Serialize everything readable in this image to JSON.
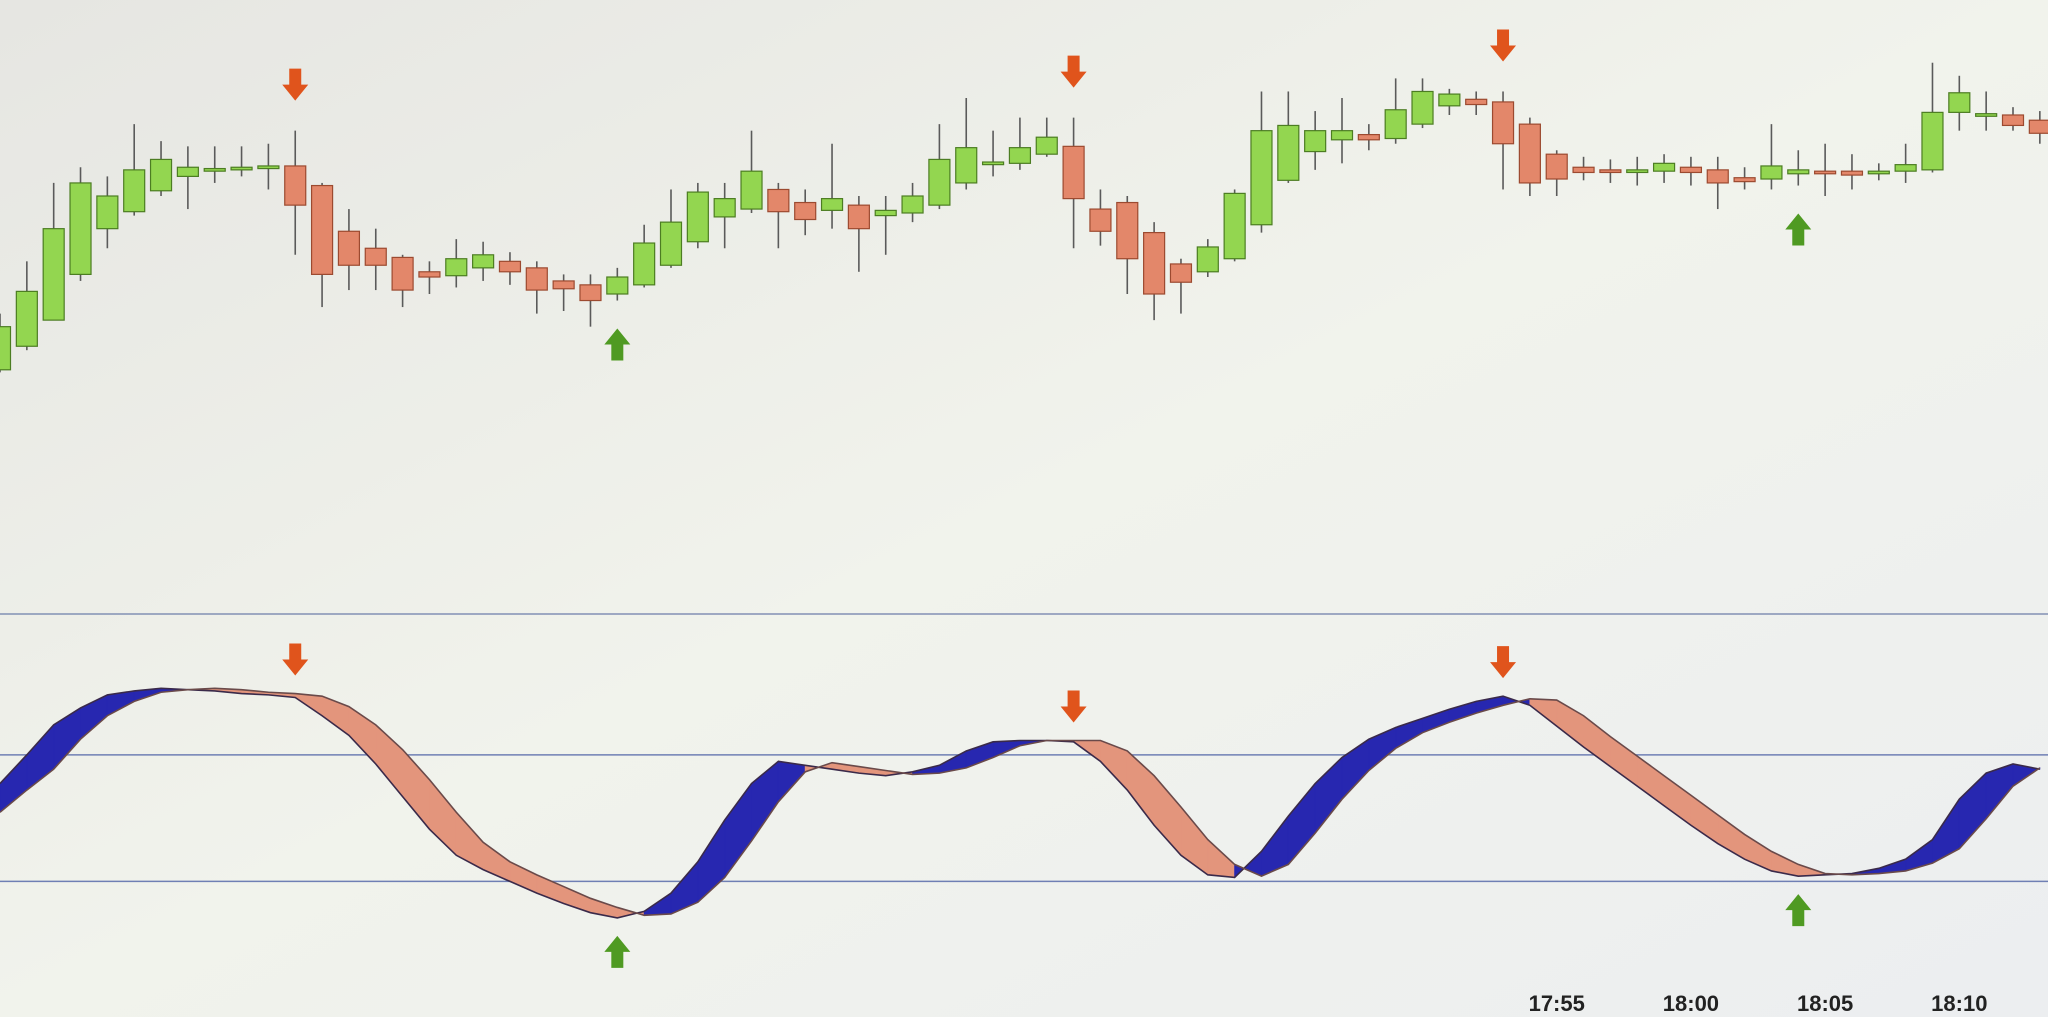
{
  "chart_data": [
    {
      "type": "candlestick",
      "ylim": [
        0,
        300
      ],
      "up_color": "#93d650",
      "down_color": "#e3876a",
      "buy_color": "#4f9a22",
      "sell_color": "#e0541c",
      "open": [
        17,
        35,
        55,
        90,
        125,
        138,
        154,
        165,
        169,
        170,
        171,
        173,
        158,
        123,
        110,
        103,
        92,
        89,
        95,
        100,
        95,
        85,
        82,
        75,
        82,
        97,
        115,
        134,
        140,
        155,
        145,
        139,
        143,
        135,
        137,
        143,
        160,
        174,
        175,
        182,
        188,
        140,
        145,
        122,
        98,
        92,
        102,
        128,
        162,
        184,
        193,
        197,
        194,
        205,
        219,
        224,
        222,
        205,
        182,
        172,
        170,
        168,
        169,
        172,
        170,
        164,
        163,
        167,
        169,
        169,
        167,
        169,
        170,
        214,
        211,
        212,
        208
      ],
      "high": [
        60,
        100,
        160,
        172,
        165,
        205,
        192,
        188,
        188,
        188,
        190,
        200,
        160,
        140,
        125,
        105,
        100,
        117,
        115,
        107,
        100,
        90,
        90,
        95,
        128,
        155,
        160,
        160,
        200,
        160,
        155,
        190,
        150,
        150,
        160,
        205,
        225,
        200,
        210,
        210,
        210,
        155,
        150,
        130,
        102,
        117,
        155,
        230,
        230,
        215,
        225,
        205,
        240,
        240,
        232,
        230,
        230,
        210,
        185,
        180,
        178,
        180,
        182,
        180,
        180,
        172,
        205,
        185,
        190,
        182,
        175,
        190,
        252,
        242,
        230,
        218,
        215
      ],
      "low": [
        15,
        32,
        55,
        85,
        110,
        135,
        150,
        140,
        160,
        165,
        155,
        105,
        65,
        78,
        78,
        65,
        75,
        80,
        85,
        82,
        60,
        62,
        50,
        70,
        80,
        95,
        110,
        110,
        137,
        110,
        120,
        125,
        92,
        105,
        130,
        140,
        155,
        165,
        170,
        180,
        110,
        112,
        75,
        55,
        60,
        88,
        100,
        122,
        160,
        170,
        175,
        185,
        190,
        202,
        212,
        212,
        155,
        150,
        150,
        162,
        160,
        158,
        160,
        158,
        140,
        155,
        155,
        158,
        150,
        155,
        162,
        160,
        168,
        200,
        200,
        200,
        190
      ],
      "close": [
        50,
        77,
        125,
        160,
        150,
        170,
        178,
        172,
        171,
        172,
        173,
        143,
        90,
        97,
        97,
        78,
        88,
        102,
        105,
        92,
        78,
        79,
        70,
        88,
        114,
        130,
        153,
        148,
        169,
        138,
        132,
        148,
        125,
        139,
        150,
        178,
        187,
        176,
        187,
        195,
        148,
        123,
        102,
        75,
        84,
        111,
        152,
        200,
        204,
        200,
        200,
        193,
        216,
        230,
        228,
        220,
        190,
        160,
        163,
        168,
        168,
        170,
        175,
        168,
        160,
        161,
        173,
        170,
        167,
        166,
        169,
        174,
        214,
        229,
        213,
        204,
        198
      ],
      "sell_signals": [
        11,
        40,
        56
      ],
      "buy_signals": [
        23,
        67
      ]
    },
    {
      "type": "oscillator",
      "ylim": [
        -79,
        230
      ],
      "levels": [
        25,
        122
      ],
      "level_color": "#6f7fb4",
      "rise_color": "#2727b0",
      "fall_color": "#e3957c",
      "buy_color": "#4f9a22",
      "sell_color": "#e0541c",
      "categories": [
        null,
        null,
        null,
        null,
        null,
        null,
        null,
        null,
        null,
        null,
        null,
        null,
        null,
        null,
        null,
        null,
        null,
        null,
        null,
        null,
        null,
        null,
        null,
        null,
        null,
        null,
        null,
        null,
        null,
        null,
        null,
        null,
        null,
        null,
        null,
        null,
        null,
        null,
        null,
        null,
        null,
        null,
        null,
        null,
        null,
        null,
        null,
        null,
        null,
        null,
        null,
        null,
        null,
        null,
        null,
        null,
        null,
        null,
        "17:55",
        null,
        null,
        null,
        null,
        "18:00",
        null,
        null,
        null,
        null,
        "18:05",
        null,
        null,
        null,
        null,
        "18:10",
        null,
        null,
        null
      ],
      "series": [
        {
          "color": "#3a2a4a",
          "values": [
            100,
            122,
            145,
            158,
            168,
            171,
            173,
            172,
            171,
            169,
            168,
            166,
            152,
            137,
            115,
            90,
            65,
            45,
            34,
            25,
            16,
            8,
            1,
            -3,
            2,
            16,
            40,
            72,
            100,
            117,
            114,
            111,
            108,
            106,
            109,
            114,
            125,
            132,
            133,
            133,
            132,
            117,
            95,
            68,
            45,
            30,
            28,
            48,
            75,
            100,
            120,
            134,
            143,
            150,
            157,
            163,
            167,
            160,
            144,
            128,
            113,
            98,
            83,
            68,
            54,
            42,
            33,
            29,
            30,
            31,
            35,
            42,
            57,
            88,
            108,
            115,
            111
          ]
        },
        {
          "color": "#6a4a4a",
          "values": [
            78,
            95,
            111,
            134,
            152,
            163,
            170,
            172,
            173,
            172,
            170,
            169,
            167,
            159,
            145,
            126,
            103,
            78,
            55,
            40,
            30,
            21,
            12,
            5,
            -1,
            0,
            9,
            28,
            56,
            86,
            109,
            116,
            113,
            110,
            107,
            108,
            112,
            120,
            129,
            133,
            133,
            133,
            125,
            106,
            82,
            57,
            38,
            29,
            38,
            62,
            88,
            110,
            127,
            139,
            147,
            154,
            160,
            165,
            164,
            152,
            136,
            121,
            106,
            91,
            76,
            61,
            48,
            38,
            31,
            30,
            31,
            33,
            39,
            50,
            73,
            98,
            112
          ]
        }
      ],
      "sell_signals": [
        11,
        40,
        56
      ],
      "buy_signals": [
        23,
        67
      ]
    }
  ]
}
